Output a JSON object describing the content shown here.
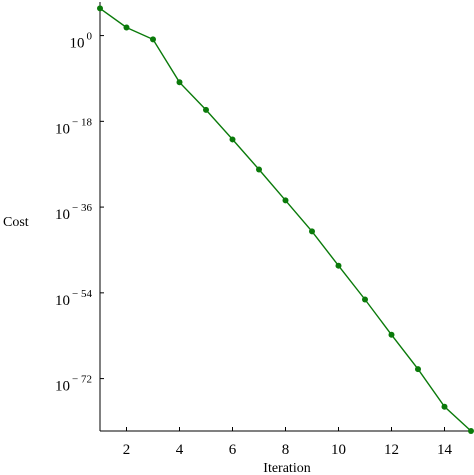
{
  "chart_data": {
    "type": "line",
    "title": "",
    "xlabel": "Iteration",
    "ylabel": "Cost",
    "xlim": [
      1,
      15
    ],
    "ylim_log10": [
      -83,
      6
    ],
    "y_scale": "log",
    "grid": false,
    "legend": "none",
    "x_ticks": [
      2,
      4,
      6,
      8,
      10,
      12,
      14
    ],
    "y_ticks": [
      {
        "base": "10",
        "exponent": "0",
        "log10": 0
      },
      {
        "base": "10",
        "exponent": "-18",
        "log10": -18
      },
      {
        "base": "10",
        "exponent": "-36",
        "log10": -36
      },
      {
        "base": "10",
        "exponent": "-54",
        "log10": -54
      },
      {
        "base": "10",
        "exponent": "-72",
        "log10": -72
      }
    ],
    "series": [
      {
        "color": "#0a7a0a",
        "x": [
          1,
          2,
          3,
          4,
          5,
          6,
          7,
          8,
          9,
          10,
          11,
          12,
          13,
          14,
          15
        ],
        "log10_y": [
          5.7,
          1.7,
          -0.8,
          -9.8,
          -15.6,
          -21.8,
          -28.1,
          -34.6,
          -41.1,
          -48.3,
          -55.4,
          -62.8,
          -70.0,
          -77.9,
          -83.0
        ]
      }
    ]
  }
}
